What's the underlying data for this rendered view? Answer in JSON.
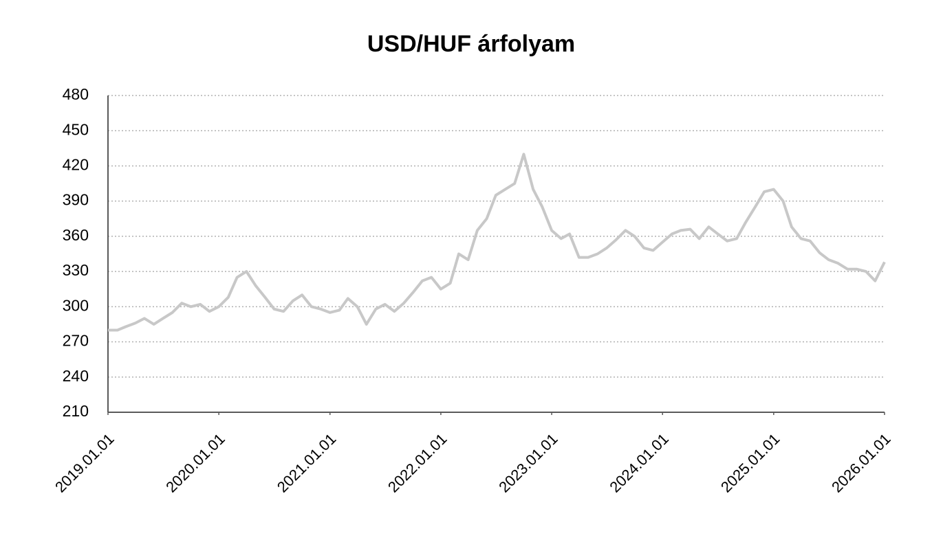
{
  "chart_data": {
    "type": "line",
    "title": "USD/HUF árfolyam",
    "x": [
      "2019.01.01",
      "2019.02.01",
      "2019.03.01",
      "2019.04.01",
      "2019.05.01",
      "2019.06.01",
      "2019.07.01",
      "2019.08.01",
      "2019.09.01",
      "2019.10.01",
      "2019.11.01",
      "2019.12.01",
      "2020.01.01",
      "2020.02.01",
      "2020.03.01",
      "2020.04.01",
      "2020.05.01",
      "2020.06.01",
      "2020.07.01",
      "2020.08.01",
      "2020.09.01",
      "2020.10.01",
      "2020.11.01",
      "2020.12.01",
      "2021.01.01",
      "2021.02.01",
      "2021.03.01",
      "2021.04.01",
      "2021.05.01",
      "2021.06.01",
      "2021.07.01",
      "2021.08.01",
      "2021.09.01",
      "2021.10.01",
      "2021.11.01",
      "2021.12.01",
      "2022.01.01",
      "2022.02.01",
      "2022.03.01",
      "2022.04.01",
      "2022.05.01",
      "2022.06.01",
      "2022.07.01",
      "2022.08.01",
      "2022.09.01",
      "2022.10.01",
      "2022.11.01",
      "2022.12.01",
      "2023.01.01",
      "2023.02.01",
      "2023.03.01",
      "2023.04.01",
      "2023.05.01",
      "2023.06.01",
      "2023.07.01",
      "2023.08.01",
      "2023.09.01",
      "2023.10.01",
      "2023.11.01",
      "2023.12.01",
      "2024.01.01",
      "2024.02.01",
      "2024.03.01",
      "2024.04.01",
      "2024.05.01",
      "2024.06.01",
      "2024.07.01",
      "2024.08.01",
      "2024.09.01",
      "2024.10.01",
      "2024.11.01",
      "2024.12.01",
      "2025.01.01",
      "2025.02.01",
      "2025.03.01",
      "2025.04.01",
      "2025.05.01",
      "2025.06.01",
      "2025.07.01",
      "2025.08.01",
      "2025.09.01",
      "2025.10.01",
      "2025.11.01",
      "2025.12.01",
      "2026.01.01"
    ],
    "series": [
      {
        "name": "USD/HUF",
        "color": "#c8c8c8",
        "values": [
          280,
          280,
          283,
          286,
          290,
          285,
          290,
          295,
          303,
          300,
          302,
          296,
          300,
          308,
          325,
          330,
          318,
          308,
          298,
          296,
          305,
          310,
          300,
          298,
          295,
          297,
          307,
          300,
          285,
          298,
          302,
          296,
          303,
          312,
          322,
          325,
          315,
          320,
          345,
          340,
          365,
          375,
          395,
          400,
          405,
          430,
          400,
          385,
          365,
          358,
          362,
          342,
          342,
          345,
          350,
          357,
          365,
          360,
          350,
          348,
          355,
          362,
          365,
          366,
          358,
          368,
          362,
          356,
          358,
          372,
          385,
          398,
          400,
          390,
          368,
          358,
          356,
          346,
          340,
          337,
          332,
          332,
          330,
          322,
          338
        ]
      }
    ],
    "xlim": [
      "2019.01.01",
      "2026.01.01"
    ],
    "xticks": [
      "2019.01.01",
      "2020.01.01",
      "2021.01.01",
      "2022.01.01",
      "2023.01.01",
      "2024.01.01",
      "2025.01.01",
      "2026.01.01"
    ],
    "ylim": [
      210,
      480
    ],
    "yticks": [
      210,
      240,
      270,
      300,
      330,
      360,
      390,
      420,
      450,
      480
    ],
    "grid": true
  }
}
